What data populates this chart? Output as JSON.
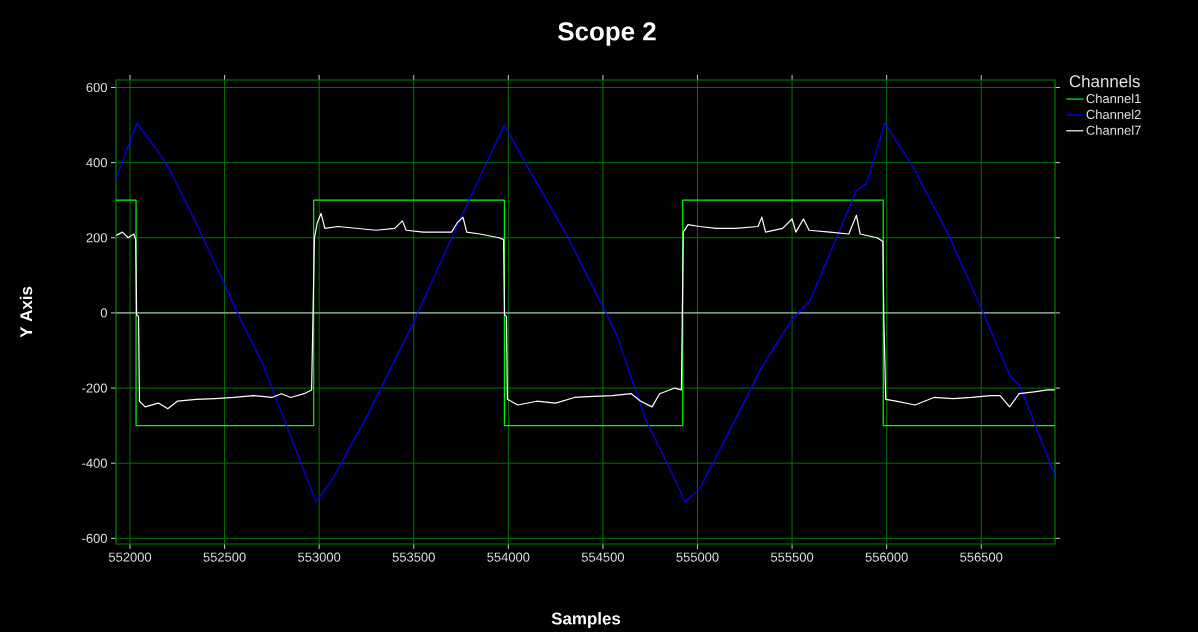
{
  "chart_data": {
    "type": "line",
    "title": "Scope 2",
    "xlabel": "Samples",
    "ylabel": "Y Axis",
    "legend_title": "Channels",
    "xlim": [
      551926,
      556890
    ],
    "ylim": [
      -615,
      620
    ],
    "xticks": [
      552000,
      552500,
      553000,
      553500,
      554000,
      554500,
      555000,
      555500,
      556000,
      556500
    ],
    "yticks": [
      -600,
      -400,
      -200,
      0,
      200,
      400,
      600
    ],
    "grid": true,
    "legend": "top right",
    "ref_lines": [
      {
        "axis": "y",
        "value": 0,
        "color": "#d0d0d0"
      }
    ],
    "series": [
      {
        "name": "Channel1",
        "color": "#00ff00",
        "x": [
          551926,
          552032,
          552032,
          552971,
          552971,
          553979,
          553979,
          554922,
          554922,
          555982,
          555982,
          556890
        ],
        "values": [
          300,
          300,
          -300,
          -300,
          300,
          300,
          -300,
          -300,
          300,
          300,
          -300,
          -300
        ]
      },
      {
        "name": "Channel2",
        "color": "#0000ff",
        "x": [
          551926,
          552037,
          552150,
          552211,
          552369,
          552580,
          552703,
          552826,
          552984,
          553072,
          553248,
          553494,
          553775,
          553979,
          554111,
          554305,
          554431,
          554572,
          554730,
          554871,
          554934,
          555013,
          555348,
          555506,
          555594,
          555840,
          555893,
          555990,
          556139,
          556334,
          556510,
          556652,
          556705,
          556889
        ],
        "values": [
          358,
          505,
          429,
          380,
          219,
          -13,
          -137,
          -298,
          -503,
          -441,
          -280,
          -30,
          282,
          500,
          380,
          211,
          86,
          -57,
          -289,
          -432,
          -503,
          -467,
          -137,
          -13,
          32,
          326,
          344,
          505,
          389,
          201,
          1,
          -168,
          -195,
          -432
        ]
      },
      {
        "name": "Channel7",
        "color": "#ffffff",
        "x": [
          551926,
          551960,
          551990,
          552020,
          552030,
          552035,
          552045,
          552050,
          552080,
          552150,
          552200,
          552250,
          552350,
          552450,
          552550,
          552650,
          552750,
          552800,
          552850,
          552920,
          552960,
          552975,
          552990,
          553010,
          553030,
          553100,
          553200,
          553300,
          553400,
          553440,
          553460,
          553550,
          553700,
          553730,
          553760,
          553780,
          553850,
          553950,
          553975,
          553980,
          553990,
          553995,
          554050,
          554150,
          554250,
          554350,
          554450,
          554550,
          554650,
          554700,
          554760,
          554800,
          554880,
          554915,
          554925,
          554950,
          555010,
          555100,
          555200,
          555320,
          555340,
          555360,
          555450,
          555500,
          555520,
          555560,
          555590,
          555700,
          555800,
          555840,
          555860,
          555950,
          555980,
          555985,
          555995,
          556050,
          556150,
          556250,
          556350,
          556450,
          556550,
          556600,
          556650,
          556700,
          556780,
          556850,
          556889
        ],
        "values": [
          206,
          215,
          200,
          210,
          195,
          -5,
          -10,
          -235,
          -250,
          -240,
          -255,
          -235,
          -230,
          -228,
          -225,
          -220,
          -225,
          -215,
          -225,
          -215,
          -205,
          200,
          240,
          265,
          225,
          230,
          225,
          220,
          225,
          245,
          220,
          215,
          215,
          240,
          255,
          215,
          210,
          200,
          195,
          -5,
          -10,
          -230,
          -245,
          -235,
          -240,
          -225,
          -222,
          -220,
          -215,
          -235,
          -250,
          -215,
          -200,
          -205,
          215,
          235,
          230,
          225,
          225,
          230,
          255,
          215,
          225,
          250,
          215,
          250,
          220,
          215,
          210,
          260,
          210,
          200,
          190,
          -10,
          -230,
          -235,
          -245,
          -225,
          -228,
          -225,
          -220,
          -220,
          -250,
          -215,
          -210,
          -205,
          -205
        ]
      }
    ]
  }
}
